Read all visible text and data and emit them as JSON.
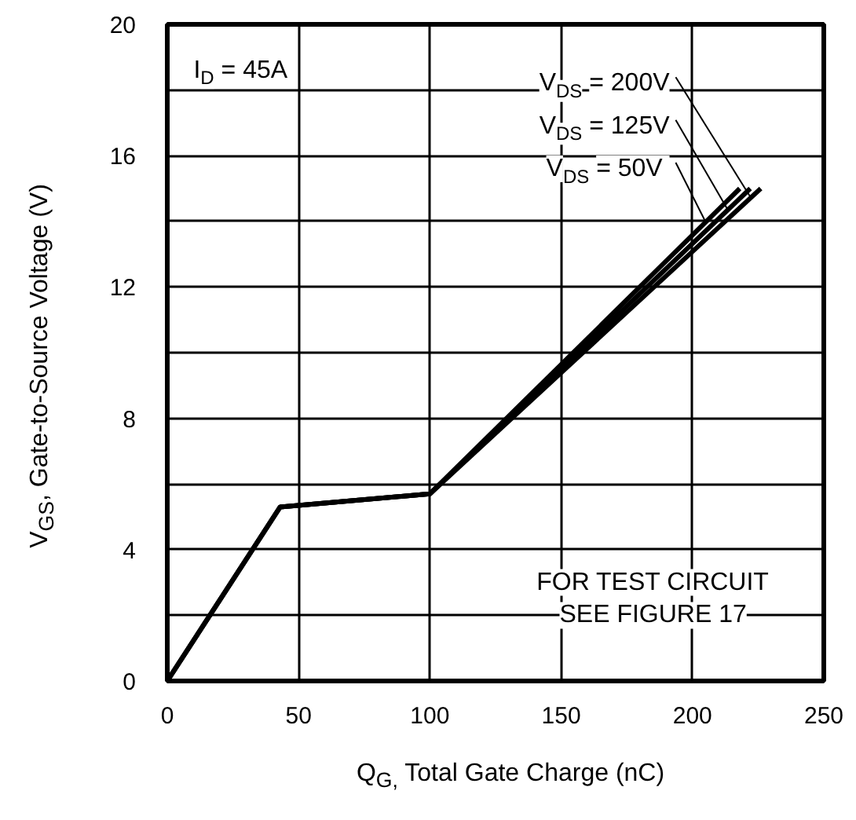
{
  "chart_data": {
    "type": "line",
    "xlabel": "Q$_{G,}$ Total Gate Charge (nC)",
    "ylabel": "V$_{GS}$, Gate-to-Source Voltage (V)",
    "xlim": [
      0,
      250
    ],
    "xticks": [
      0,
      50,
      100,
      150,
      200,
      250
    ],
    "ylim": [
      0,
      20
    ],
    "yticks": [
      0,
      {
        "value": 2,
        "label": null
      },
      4,
      {
        "value": 6,
        "label": null
      },
      8,
      {
        "value": 10,
        "label": null
      },
      12,
      {
        "value": 14,
        "label": null
      },
      16,
      {
        "value": 18,
        "label": null
      },
      20
    ],
    "grid": true,
    "marker": "none",
    "line_style": "solid",
    "series": [
      {
        "name": "V$_{DS}$ = 200V",
        "color": "#000000",
        "x": [
          0,
          43,
          100,
          226
        ],
        "values": [
          0,
          5.3,
          5.7,
          15
        ]
      },
      {
        "name": "V$_{DS}$ = 125V",
        "color": "#000000",
        "x": [
          0,
          43,
          100,
          222
        ],
        "values": [
          0,
          5.3,
          5.7,
          15
        ]
      },
      {
        "name": "V$_{DS}$ =  50V",
        "color": "#000000",
        "x": [
          0,
          43,
          100,
          218
        ],
        "values": [
          0,
          5.3,
          5.7,
          15
        ]
      }
    ],
    "annotations": [
      "I$_{D}$ = 45A",
      "FOR TEST CIRCUIT\nSEE FIGURE 17"
    ]
  }
}
